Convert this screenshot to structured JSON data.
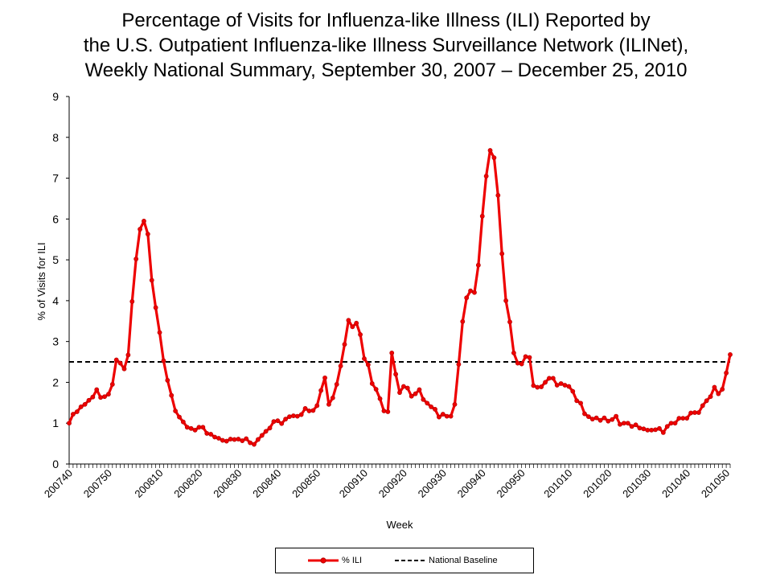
{
  "title_lines": [
    "Percentage of Visits for Influenza-like Illness (ILI) Reported by",
    "the U.S. Outpatient Influenza-like Illness Surveillance Network (ILINet),",
    "Weekly National Summary, September 30, 2007 – December 25, 2010"
  ],
  "colors": {
    "ili": "#ee0000",
    "baseline": "#000000"
  },
  "chart_data": {
    "type": "line",
    "title": "Percentage of Visits for Influenza-like Illness (ILI) Reported by the U.S. Outpatient Influenza-like Illness Surveillance Network (ILINet), Weekly National Summary, September 30, 2007 – December 25, 2010",
    "xlabel": "Week",
    "ylabel": "% of Visits for ILI",
    "ylim": [
      0,
      9
    ],
    "yticks": [
      0,
      1,
      2,
      3,
      4,
      5,
      6,
      7,
      8,
      9
    ],
    "xtick_labels": [
      "200740",
      "200750",
      "200810",
      "200820",
      "200830",
      "200840",
      "200850",
      "200910",
      "200920",
      "200930",
      "200940",
      "200950",
      "201010",
      "201020",
      "201030",
      "201040",
      "201050"
    ],
    "xtick_label_week_index": [
      0,
      10,
      23,
      33,
      43,
      53,
      63,
      75,
      85,
      95,
      105,
      115,
      127,
      137,
      147,
      157,
      167
    ],
    "legend": "bottom",
    "series": [
      {
        "name": "% ILI",
        "values": [
          1.0,
          1.22,
          1.28,
          1.4,
          1.46,
          1.56,
          1.64,
          1.82,
          1.63,
          1.65,
          1.71,
          1.95,
          2.55,
          2.47,
          2.33,
          2.67,
          3.98,
          5.02,
          5.75,
          5.95,
          5.63,
          4.5,
          3.83,
          3.22,
          2.53,
          2.05,
          1.68,
          1.3,
          1.15,
          1.03,
          0.9,
          0.87,
          0.83,
          0.9,
          0.9,
          0.75,
          0.73,
          0.66,
          0.63,
          0.58,
          0.56,
          0.61,
          0.6,
          0.61,
          0.57,
          0.62,
          0.52,
          0.48,
          0.6,
          0.7,
          0.8,
          0.88,
          1.04,
          1.06,
          0.99,
          1.1,
          1.16,
          1.18,
          1.17,
          1.21,
          1.36,
          1.3,
          1.31,
          1.43,
          1.8,
          2.11,
          1.46,
          1.62,
          1.95,
          2.4,
          2.93,
          3.52,
          3.36,
          3.45,
          3.17,
          2.58,
          2.43,
          1.97,
          1.83,
          1.6,
          1.3,
          1.28,
          2.72,
          2.2,
          1.75,
          1.9,
          1.86,
          1.66,
          1.72,
          1.82,
          1.58,
          1.49,
          1.4,
          1.34,
          1.15,
          1.22,
          1.17,
          1.17,
          1.46,
          2.44,
          3.49,
          4.07,
          4.24,
          4.2,
          4.87,
          6.07,
          7.05,
          7.68,
          7.5,
          6.58,
          5.15,
          4.0,
          3.48,
          2.72,
          2.47,
          2.45,
          2.63,
          2.61,
          1.92,
          1.88,
          1.89,
          2.0,
          2.1,
          2.1,
          1.93,
          1.97,
          1.93,
          1.9,
          1.78,
          1.55,
          1.49,
          1.23,
          1.16,
          1.1,
          1.13,
          1.07,
          1.13,
          1.05,
          1.09,
          1.17,
          0.97,
          1.0,
          1.0,
          0.92,
          0.96,
          0.88,
          0.86,
          0.83,
          0.83,
          0.84,
          0.87,
          0.77,
          0.92,
          1.0,
          1.0,
          1.12,
          1.12,
          1.12,
          1.25,
          1.26,
          1.26,
          1.43,
          1.55,
          1.65,
          1.88,
          1.72,
          1.83,
          2.23,
          2.68
        ]
      },
      {
        "name": "National Baseline",
        "style": "dashed",
        "value": 2.5
      }
    ]
  }
}
